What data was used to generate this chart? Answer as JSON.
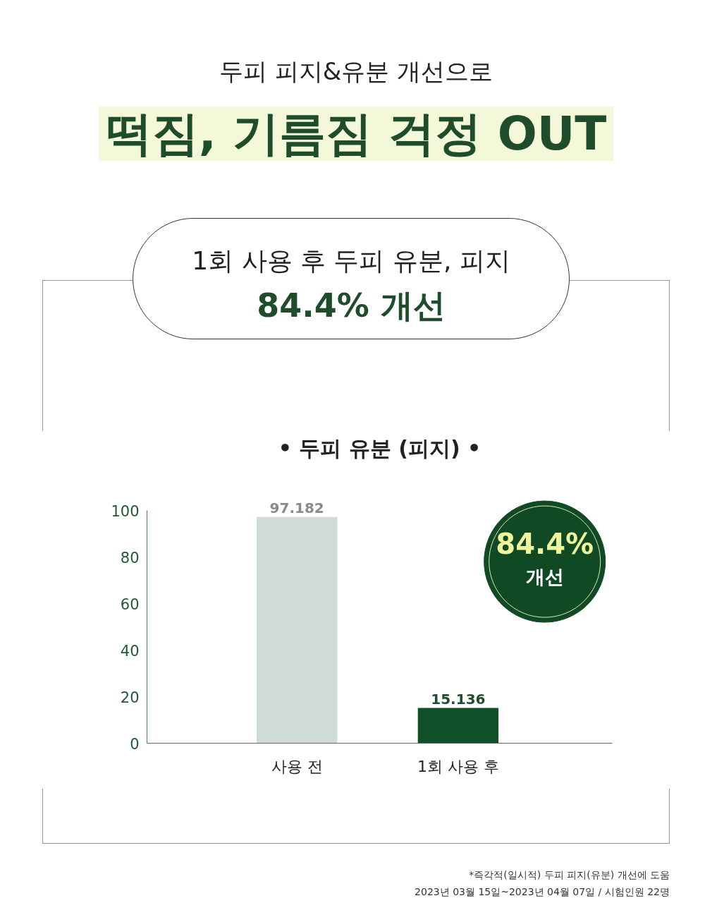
{
  "chart_data": {
    "type": "bar",
    "title": "• 두피 유분 (피지) •",
    "subtitle": "떡짐, 기름짐 걱정 OUT",
    "annotations": [
      "두피 피지&유분 개선으로",
      "1회 사용 후 두피 유분, 피지",
      "84.4% 개선",
      "84.4%",
      "개선",
      "*즉각적(일시적) 두피 피지(유분) 개선에 도움",
      "2023년 03월 15일~2023년 04월 07일 / 시험인원 22명"
    ],
    "categories": [
      "사용 전",
      "1회 사용 후"
    ],
    "values": [
      97.182,
      15.136
    ],
    "colors": [
      "#d0dcd8",
      "#0f5028"
    ],
    "data_labels": true,
    "ylim": [
      0,
      100
    ],
    "yticks": [
      0,
      20,
      40,
      60,
      80,
      100
    ],
    "grid": false
  }
}
